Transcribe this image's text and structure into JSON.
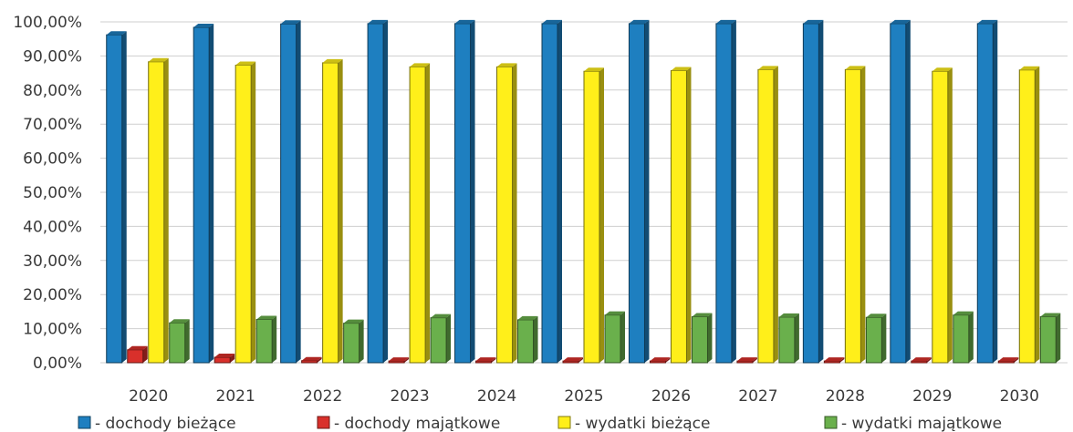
{
  "chart_data": {
    "type": "bar",
    "categories": [
      "2020",
      "2021",
      "2022",
      "2023",
      "2024",
      "2025",
      "2026",
      "2027",
      "2028",
      "2029",
      "2030"
    ],
    "ylim": [
      0,
      100
    ],
    "y_ticks": [
      "0,00%",
      "10,00%",
      "20,00%",
      "30,00%",
      "40,00%",
      "50,00%",
      "60,00%",
      "70,00%",
      "80,00%",
      "90,00%",
      "100,00%"
    ],
    "grid": true,
    "legend_position": "bottom",
    "series": [
      {
        "name": "- dochody bieżące",
        "color": "#1e7fc0",
        "values": [
          96.2,
          98.4,
          99.4,
          99.5,
          99.5,
          99.5,
          99.5,
          99.5,
          99.5,
          99.5,
          99.5
        ]
      },
      {
        "name": "- dochody majątkowe",
        "color": "#d9302b",
        "values": [
          3.8,
          1.6,
          0.6,
          0.5,
          0.5,
          0.5,
          0.5,
          0.5,
          0.5,
          0.5,
          0.5
        ]
      },
      {
        "name": "- wydatki bieżące",
        "color": "#ffef1a",
        "values": [
          88.3,
          87.3,
          88.0,
          86.8,
          86.8,
          85.5,
          85.7,
          86.0,
          86.0,
          85.5,
          85.9
        ]
      },
      {
        "name": "- wydatki majątkowe",
        "color": "#6ab04c",
        "values": [
          11.7,
          12.7,
          11.6,
          13.2,
          12.6,
          14.0,
          13.5,
          13.4,
          13.3,
          14.0,
          13.5
        ]
      }
    ]
  }
}
